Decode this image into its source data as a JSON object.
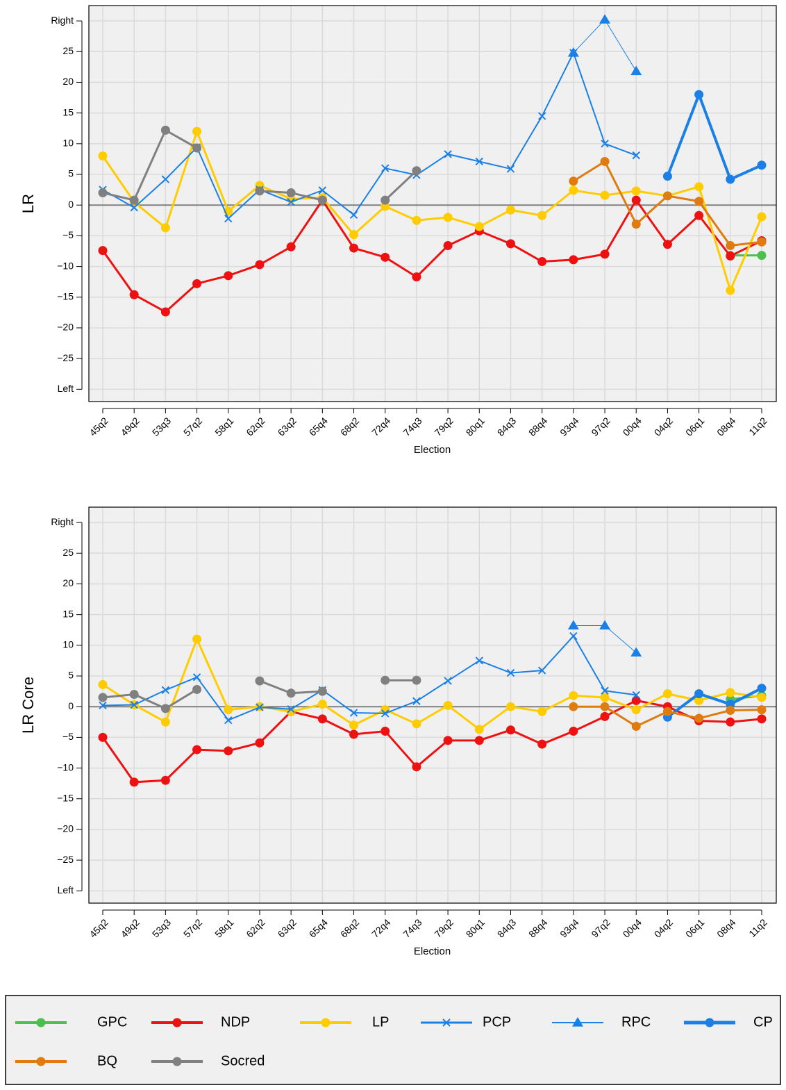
{
  "chart_data": [
    {
      "type": "line",
      "ylabel": "LR",
      "xlabel": "Election",
      "categories": [
        "45q2",
        "49q2",
        "53q3",
        "57q2",
        "58q1",
        "62q2",
        "63q2",
        "65q4",
        "68q2",
        "72q4",
        "74q3",
        "79q2",
        "80q1",
        "84q3",
        "88q4",
        "93q4",
        "97q2",
        "00q4",
        "04q2",
        "06q1",
        "08q4",
        "11q2"
      ],
      "ylim": [
        -32,
        32.5
      ],
      "yticks": [
        {
          "value": -30,
          "label": "Left"
        },
        {
          "value": -25,
          "label": "−25"
        },
        {
          "value": -20,
          "label": "−20"
        },
        {
          "value": -15,
          "label": "−15"
        },
        {
          "value": -10,
          "label": "−10"
        },
        {
          "value": -5,
          "label": "−5"
        },
        0,
        5,
        10,
        15,
        20,
        25,
        {
          "value": 30,
          "label": "Right"
        }
      ],
      "grid": true,
      "hline": 0,
      "series": [
        {
          "name": "GPC",
          "color": "#4cbf4c",
          "marker": "circle",
          "linewidth": 3,
          "values": [
            null,
            null,
            null,
            null,
            null,
            null,
            null,
            null,
            null,
            null,
            null,
            null,
            null,
            null,
            null,
            null,
            null,
            null,
            null,
            null,
            -8.2,
            -8.2
          ]
        },
        {
          "name": "NDP",
          "color": "#ee1111",
          "marker": "circle",
          "linewidth": 3,
          "values": [
            -7.4,
            -14.6,
            -17.4,
            -12.8,
            -11.5,
            -9.7,
            -6.8,
            0.8,
            -7.0,
            -8.5,
            -11.7,
            -6.6,
            -4.2,
            -6.3,
            -9.2,
            -8.9,
            -8.0,
            0.8,
            -6.4,
            -1.7,
            -8.3,
            -5.8
          ]
        },
        {
          "name": "LP",
          "color": "#ffcc00",
          "marker": "circle",
          "linewidth": 3,
          "values": [
            8.0,
            0.5,
            -3.7,
            12.0,
            -1.0,
            3.2,
            1.0,
            1.2,
            -4.8,
            -0.2,
            -2.5,
            -2.0,
            -3.5,
            -0.8,
            -1.7,
            2.4,
            1.6,
            2.3,
            1.5,
            3.0,
            -13.9,
            -1.9
          ]
        },
        {
          "name": "PCP",
          "color": "#1a80e6",
          "marker": "x",
          "linewidth": 2,
          "values": [
            2.5,
            -0.4,
            4.2,
            9.4,
            -2.2,
            2.5,
            0.5,
            2.4,
            -1.6,
            6.0,
            4.9,
            8.3,
            7.1,
            5.9,
            14.5,
            24.8,
            10.0,
            8.1,
            null,
            null,
            null,
            null
          ]
        },
        {
          "name": "RPC",
          "color": "#1a80e6",
          "marker": "triangle",
          "linewidth": 1,
          "values": [
            null,
            null,
            null,
            null,
            null,
            null,
            null,
            null,
            null,
            null,
            null,
            null,
            null,
            null,
            null,
            24.8,
            30.2,
            21.8,
            null,
            null,
            null,
            null
          ]
        },
        {
          "name": "CP",
          "color": "#1a80e6",
          "marker": "circle",
          "linewidth": 4,
          "values": [
            null,
            null,
            null,
            null,
            null,
            null,
            null,
            null,
            null,
            null,
            null,
            null,
            null,
            null,
            null,
            null,
            null,
            null,
            4.7,
            18.0,
            4.2,
            6.5
          ]
        },
        {
          "name": "BQ",
          "color": "#e07b10",
          "marker": "circle",
          "linewidth": 3,
          "values": [
            null,
            null,
            null,
            null,
            null,
            null,
            null,
            null,
            null,
            null,
            null,
            null,
            null,
            null,
            null,
            3.9,
            7.1,
            -3.1,
            1.5,
            0.6,
            -6.6,
            -6.0
          ]
        },
        {
          "name": "Socred",
          "color": "#808080",
          "marker": "circle",
          "linewidth": 3,
          "values": [
            2.0,
            0.8,
            12.2,
            9.3,
            null,
            2.3,
            2.0,
            0.8,
            null,
            0.8,
            5.6,
            null,
            null,
            null,
            null,
            null,
            null,
            null,
            null,
            null,
            null,
            null
          ]
        }
      ]
    },
    {
      "type": "line",
      "ylabel": "LR Core",
      "xlabel": "Election",
      "categories": [
        "45q2",
        "49q2",
        "53q3",
        "57q2",
        "58q1",
        "62q2",
        "63q2",
        "65q4",
        "68q2",
        "72q4",
        "74q3",
        "79q2",
        "80q1",
        "84q3",
        "88q4",
        "93q4",
        "97q2",
        "00q4",
        "04q2",
        "06q1",
        "08q4",
        "11q2"
      ],
      "ylim": [
        -32,
        32.5
      ],
      "yticks": [
        {
          "value": -30,
          "label": "Left"
        },
        {
          "value": -25,
          "label": "−25"
        },
        {
          "value": -20,
          "label": "−20"
        },
        {
          "value": -15,
          "label": "−15"
        },
        {
          "value": -10,
          "label": "−10"
        },
        {
          "value": -5,
          "label": "−5"
        },
        0,
        5,
        10,
        15,
        20,
        25,
        {
          "value": 30,
          "label": "Right"
        }
      ],
      "grid": true,
      "hline": 0,
      "series": [
        {
          "name": "GPC",
          "color": "#4cbf4c",
          "marker": "circle",
          "linewidth": 3,
          "values": [
            null,
            null,
            null,
            null,
            null,
            null,
            null,
            null,
            null,
            null,
            null,
            null,
            null,
            null,
            null,
            null,
            null,
            null,
            null,
            null,
            1.2,
            1.8
          ]
        },
        {
          "name": "NDP",
          "color": "#ee1111",
          "marker": "circle",
          "linewidth": 3,
          "values": [
            -5.0,
            -12.3,
            -12.0,
            -7.0,
            -7.2,
            -5.9,
            -0.8,
            -2.0,
            -4.5,
            -4.0,
            -9.8,
            -5.5,
            -5.5,
            -3.8,
            -6.1,
            -4.0,
            -1.6,
            1.0,
            0.0,
            -2.3,
            -2.5,
            -2.0
          ]
        },
        {
          "name": "LP",
          "color": "#ffcc00",
          "marker": "circle",
          "linewidth": 3,
          "values": [
            3.6,
            0.3,
            -2.5,
            11.0,
            -0.5,
            0.0,
            -0.8,
            0.4,
            -3.0,
            -0.5,
            -2.8,
            0.2,
            -3.7,
            0.0,
            -0.8,
            1.8,
            1.5,
            -0.5,
            2.1,
            1.0,
            2.3,
            1.5
          ]
        },
        {
          "name": "PCP",
          "color": "#1a80e6",
          "marker": "x",
          "linewidth": 2,
          "values": [
            0.2,
            0.3,
            2.7,
            4.8,
            -2.2,
            -0.1,
            -0.4,
            2.7,
            -1.0,
            -1.1,
            0.9,
            4.2,
            7.5,
            5.5,
            5.9,
            11.5,
            2.6,
            1.9,
            null,
            null,
            null,
            null
          ]
        },
        {
          "name": "RPC",
          "color": "#1a80e6",
          "marker": "triangle",
          "linewidth": 1,
          "values": [
            null,
            null,
            null,
            null,
            null,
            null,
            null,
            null,
            null,
            null,
            null,
            null,
            null,
            null,
            null,
            13.2,
            13.2,
            8.8,
            null,
            null,
            null,
            null
          ]
        },
        {
          "name": "CP",
          "color": "#1a80e6",
          "marker": "circle",
          "linewidth": 4,
          "values": [
            null,
            null,
            null,
            null,
            null,
            null,
            null,
            null,
            null,
            null,
            null,
            null,
            null,
            null,
            null,
            null,
            null,
            null,
            -1.7,
            2.1,
            0.4,
            3.0
          ]
        },
        {
          "name": "BQ",
          "color": "#e07b10",
          "marker": "circle",
          "linewidth": 3,
          "values": [
            null,
            null,
            null,
            null,
            null,
            null,
            null,
            null,
            null,
            null,
            null,
            null,
            null,
            null,
            null,
            0.0,
            0.0,
            -3.2,
            -0.8,
            -1.9,
            -0.6,
            -0.5
          ]
        },
        {
          "name": "Socred",
          "color": "#808080",
          "marker": "circle",
          "linewidth": 3,
          "values": [
            1.5,
            2.0,
            -0.3,
            2.8,
            null,
            4.2,
            2.2,
            2.5,
            null,
            4.3,
            4.3,
            null,
            null,
            null,
            null,
            null,
            null,
            null,
            null,
            null,
            null,
            null
          ]
        }
      ]
    }
  ]
}
